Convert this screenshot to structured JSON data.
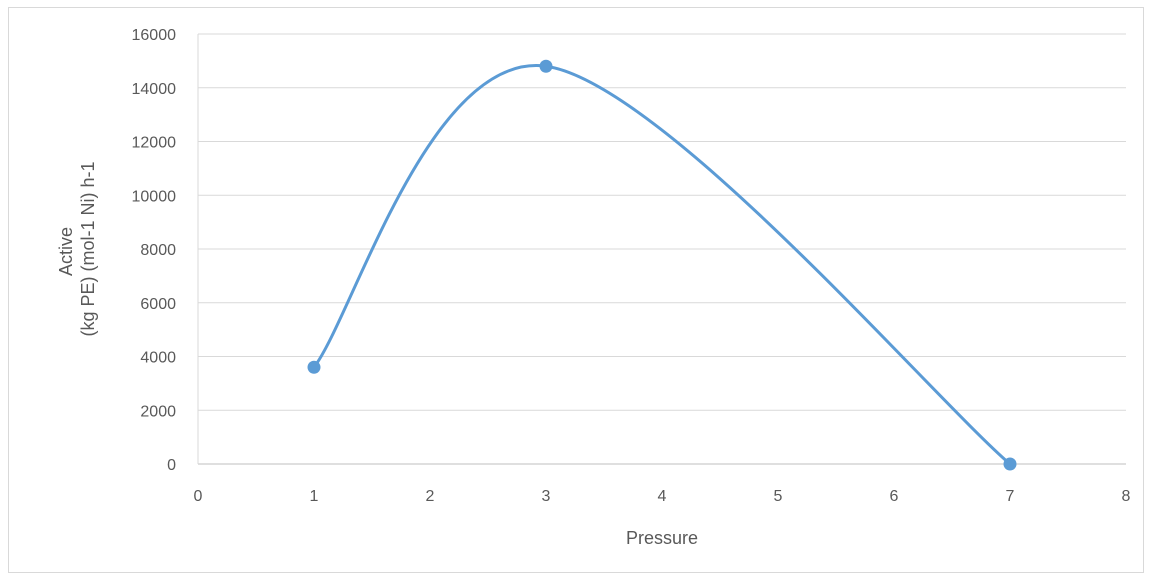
{
  "chart_data": {
    "type": "scatter",
    "xlabel": "Pressure",
    "ylabel_lines": [
      "Active",
      "(kg PE) (mol-1 Ni) h-1"
    ],
    "xlim": [
      0,
      8
    ],
    "ylim": [
      0,
      16000
    ],
    "x_ticks": [
      0,
      1,
      2,
      3,
      4,
      5,
      6,
      7,
      8
    ],
    "y_ticks": [
      0,
      2000,
      4000,
      6000,
      8000,
      10000,
      12000,
      14000,
      16000
    ],
    "x_tick_labels": [
      "0",
      "1",
      "2",
      "3",
      "4",
      "5",
      "6",
      "7",
      "8"
    ],
    "y_tick_labels": [
      "0",
      "2000",
      "4000",
      "6000",
      "8000",
      "10000",
      "12000",
      "14000",
      "16000"
    ],
    "grid": "horizontal",
    "smooth_line": true,
    "series": [
      {
        "x": [
          1,
          3,
          7
        ],
        "y": [
          3600,
          14800,
          0
        ],
        "color": "#5b9bd5"
      }
    ]
  }
}
